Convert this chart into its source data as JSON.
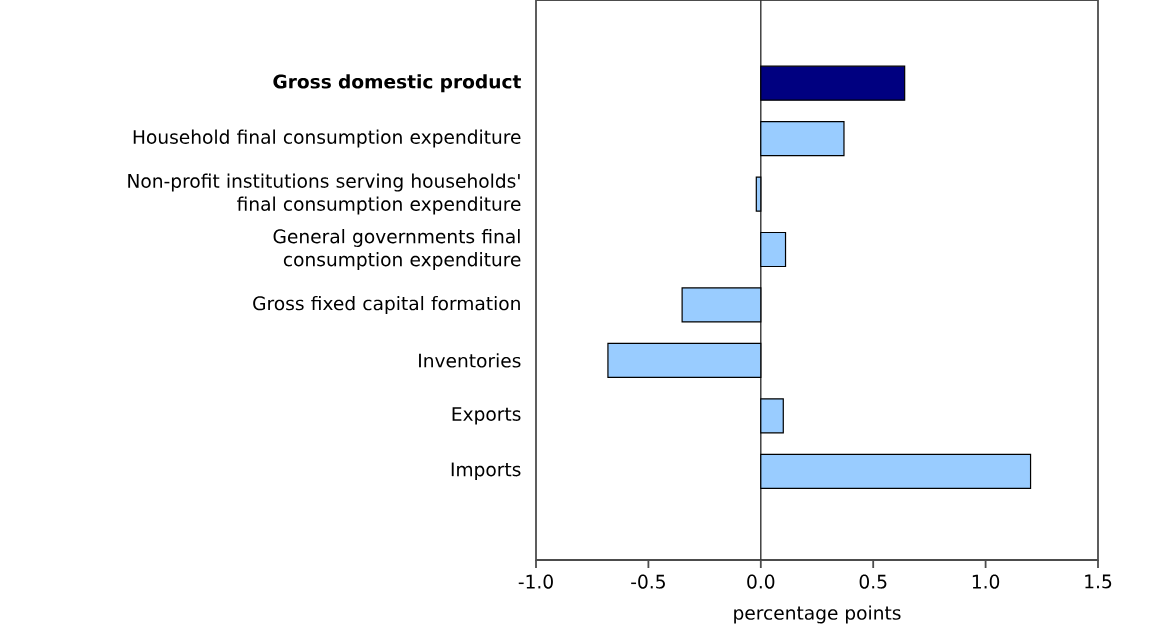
{
  "chart_data": {
    "type": "bar",
    "orientation": "horizontal",
    "xlabel": "percentage points",
    "categories": [
      "**Gross domestic product**",
      "Household final consumption expenditure",
      "Non-profit institutions serving households' final consumption expenditure",
      "General governments final consumption expenditure",
      "Gross fixed capital formation",
      "Inventories",
      "Exports",
      "Imports"
    ],
    "values": [
      0.64,
      0.37,
      -0.02,
      0.11,
      -0.35,
      -0.68,
      0.1,
      1.2
    ],
    "colors": [
      "#000080",
      "#99ccff",
      "#99ccff",
      "#99ccff",
      "#99ccff",
      "#99ccff",
      "#99ccff",
      "#99ccff"
    ],
    "xlim": [
      -1.0,
      1.5
    ],
    "xticks": [
      {
        "value": -1.0,
        "label": "-1.0"
      },
      {
        "value": -0.5,
        "label": "-0.5"
      },
      {
        "value": 0.0,
        "label": "0.0"
      },
      {
        "value": 0.5,
        "label": "0.5"
      },
      {
        "value": 1.0,
        "label": "1.0"
      },
      {
        "value": 1.5,
        "label": "1.5"
      }
    ]
  }
}
